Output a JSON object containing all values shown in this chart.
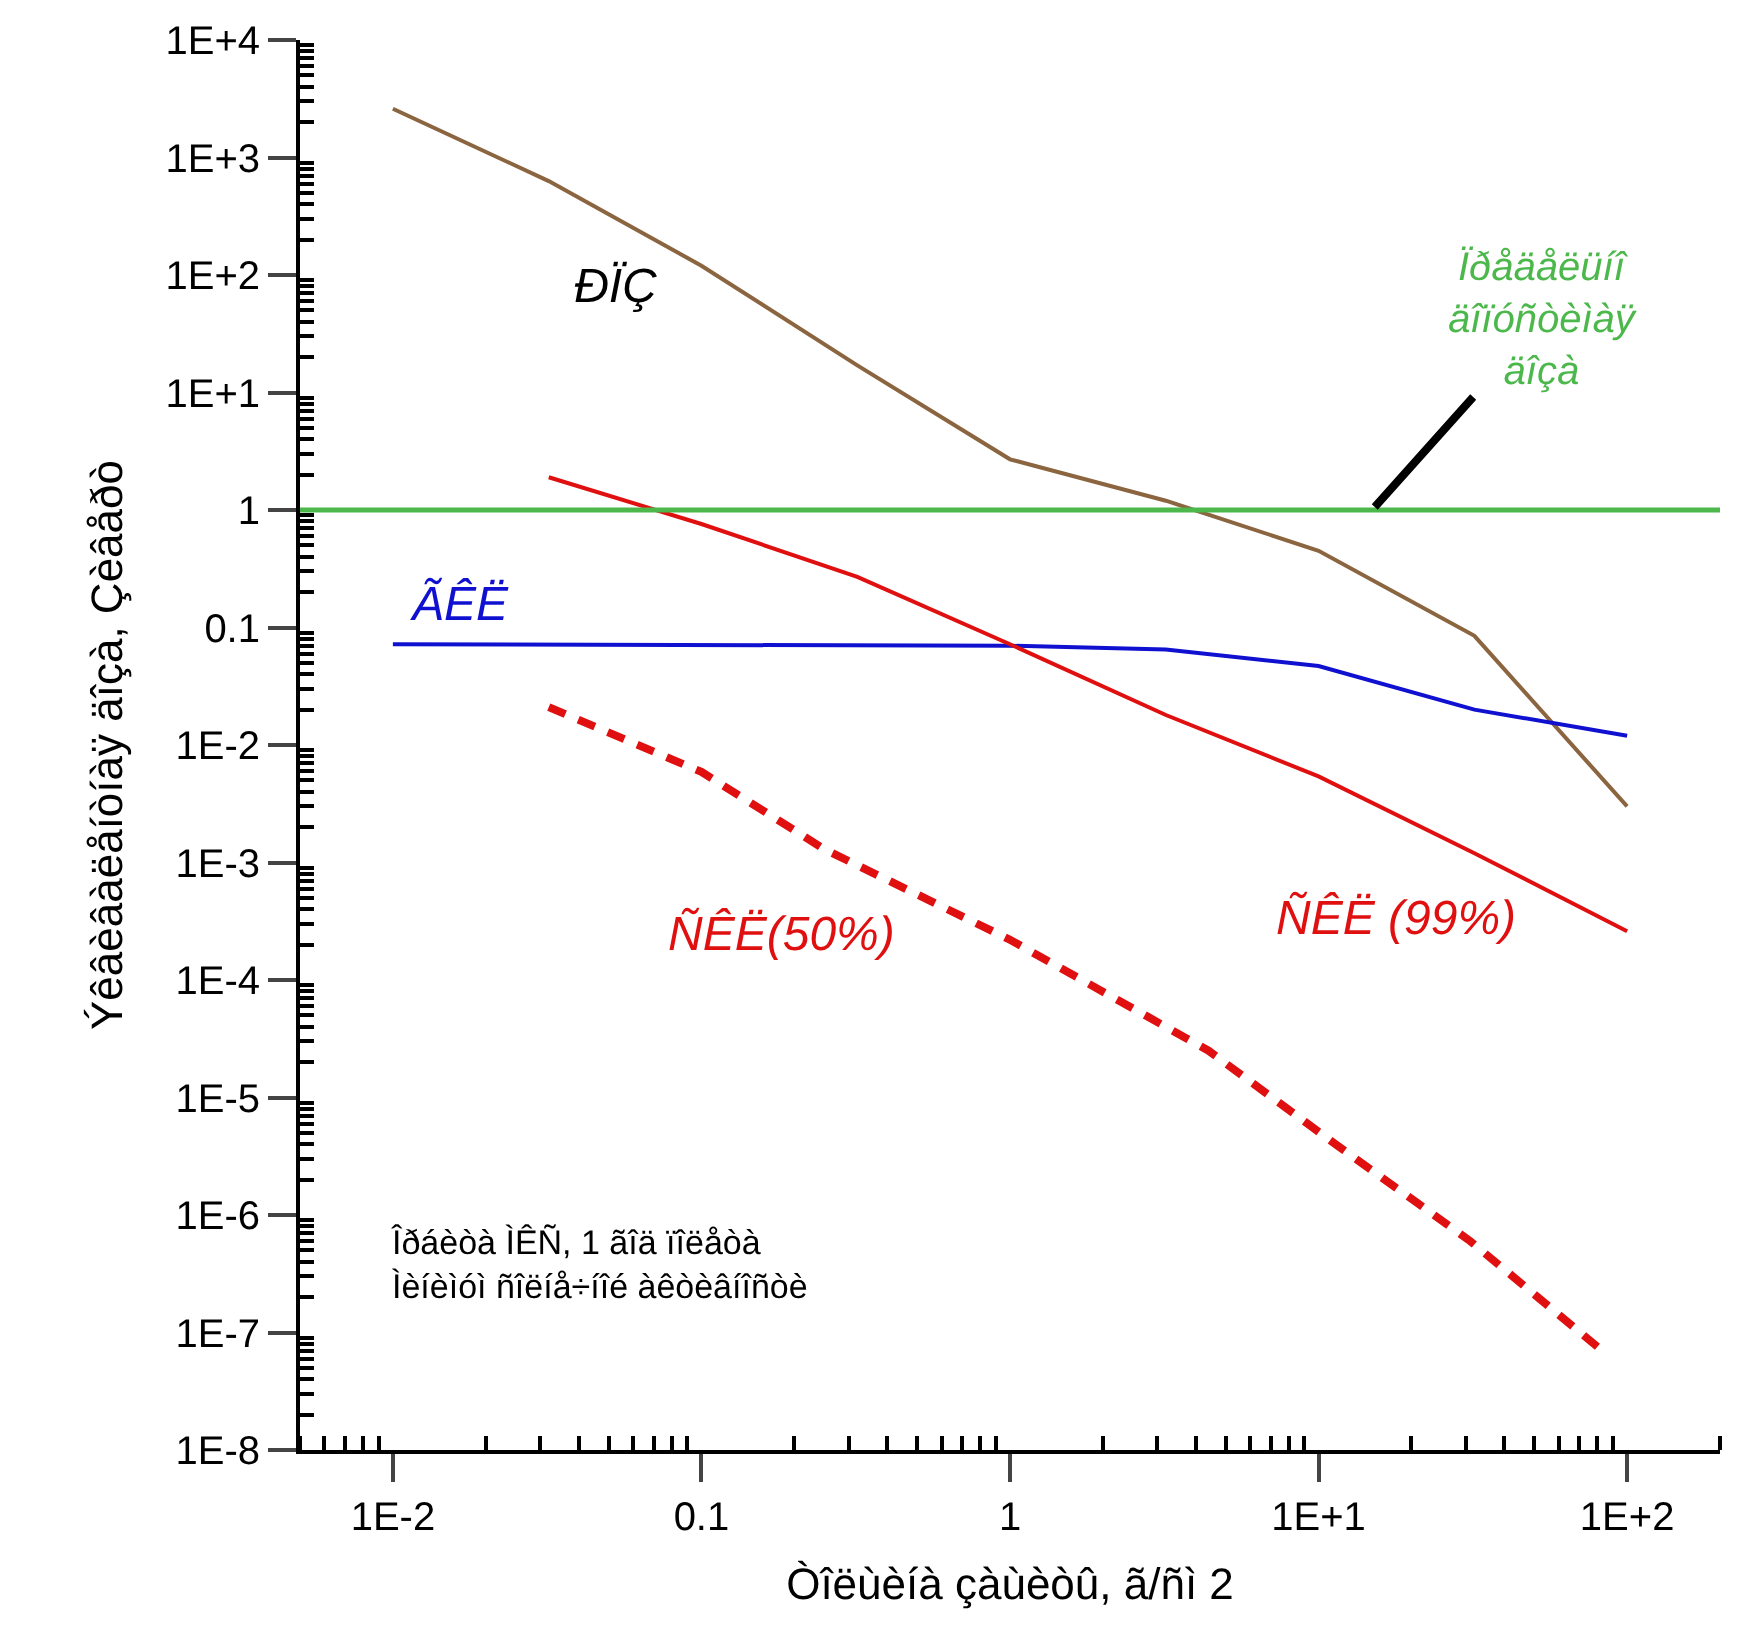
{
  "chart_data": {
    "type": "line",
    "xlabel": "Òîëùèíà çàùèòû, ã/ñì 2",
    "ylabel": "Ýêâèâàëåíòíàÿ äîçà, Çèâåðò",
    "log": "xy",
    "legend": false,
    "marker": "none",
    "xlim": [
      0.005,
      200
    ],
    "xticks": [
      {
        "value": 0.01,
        "label": "1E-2"
      },
      0.1,
      1,
      {
        "value": 10,
        "label": "1E+1"
      },
      {
        "value": 100,
        "label": "1E+2"
      }
    ],
    "ylim": [
      1e-08,
      10000
    ],
    "yticks": [
      {
        "value": 1e-08,
        "label": "1E-8"
      },
      {
        "value": 1e-07,
        "label": "1E-7"
      },
      {
        "value": 1e-06,
        "label": "1E-6"
      },
      {
        "value": 1e-05,
        "label": "1E-5"
      },
      {
        "value": 0.0001,
        "label": "1E-4"
      },
      {
        "value": 0.001,
        "label": "1E-3"
      },
      {
        "value": 0.01,
        "label": "1E-2"
      },
      0.1,
      1,
      {
        "value": 10,
        "label": "1E+1"
      },
      {
        "value": 100,
        "label": "1E+2"
      },
      {
        "value": 1000,
        "label": "1E+3"
      },
      {
        "value": 10000,
        "label": "1E+4"
      }
    ],
    "series": [
      {
        "name": "ÐÏÇ",
        "color": "#8b6540",
        "line_style": "solid",
        "x": [
          0.01,
          0.032,
          0.1,
          0.32,
          1,
          3.2,
          10,
          32,
          100
        ],
        "values": [
          2600,
          630,
          120,
          17,
          2.7,
          1.2,
          0.45,
          0.085,
          0.003
        ]
      },
      {
        "name": "ÃÊË",
        "color": "#1010d0",
        "line_style": "solid",
        "x": [
          0.01,
          1,
          3.2,
          10,
          32,
          100
        ],
        "values": [
          0.072,
          0.07,
          0.065,
          0.047,
          0.02,
          0.012
        ]
      },
      {
        "name": "ÑÊË (99%)",
        "color": "#e01010",
        "line_style": "solid",
        "x": [
          0.032,
          0.1,
          0.32,
          1,
          3.2,
          10,
          32,
          100
        ],
        "values": [
          1.9,
          0.76,
          0.27,
          0.072,
          0.018,
          0.0054,
          0.0012,
          0.00026
        ]
      },
      {
        "name": "ÑÊË(50%)",
        "color": "#e01010",
        "line_style": "dashed",
        "x": [
          0.032,
          0.1,
          0.25,
          1,
          4.4,
          11.5,
          31,
          83
        ],
        "values": [
          0.021,
          0.0059,
          0.0013,
          0.00022,
          2.5e-05,
          3.9e-06,
          6e-07,
          7e-08
        ]
      }
    ],
    "ref_lines": [
      {
        "axis": "y",
        "value": 1,
        "label": "Ïðåäåëüíî\näîïóñòèìàÿ\näîçà",
        "color": "#4cb84c",
        "line_style": "solid"
      }
    ],
    "annotations": [
      "Îðáèòà ÌÊÑ, 1 ãîä ïîëåòà\nÌèíèìóì ñîëíå÷íîé àêòèâíîñòè"
    ]
  }
}
